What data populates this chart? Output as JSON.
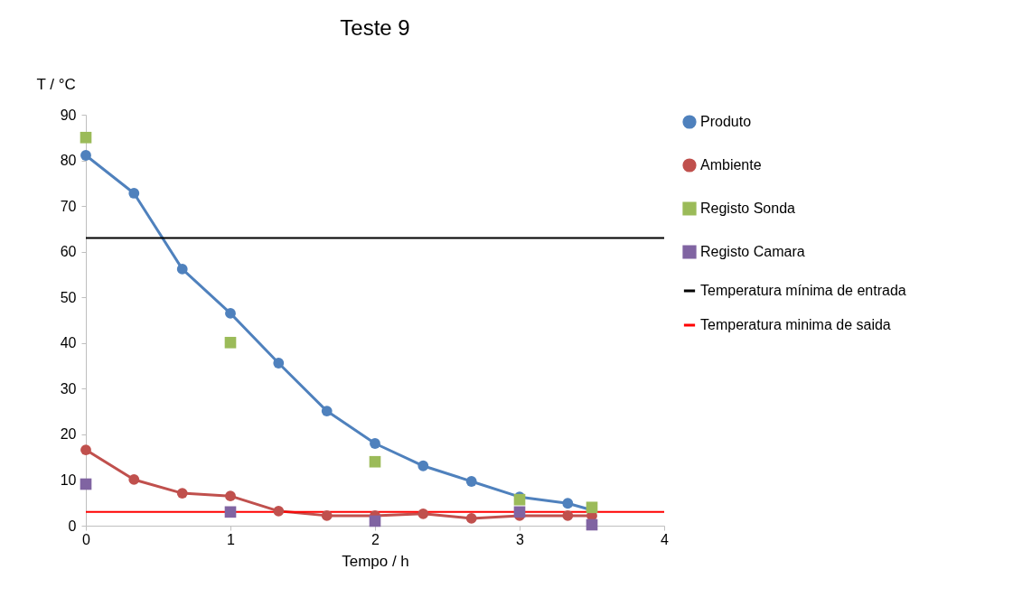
{
  "chart_data": {
    "type": "line",
    "title": "Teste 9",
    "xlabel": "Tempo / h",
    "ylabel": "T / °C",
    "xlim": [
      0,
      4
    ],
    "xticks": [
      0,
      1,
      2,
      3,
      4
    ],
    "ylim": [
      0,
      90
    ],
    "yticks": [
      0,
      10,
      20,
      30,
      40,
      50,
      60,
      70,
      80,
      90
    ],
    "grid": false,
    "legend": "right",
    "marker": "circle",
    "series": [
      {
        "name": "Produto",
        "color": "#4f81bd",
        "x": [
          0,
          0.333,
          0.667,
          1,
          1.333,
          1.667,
          2,
          2.333,
          2.667,
          3,
          3.333,
          3.5
        ],
        "values": [
          81.1,
          72.8,
          56.2,
          46.5,
          35.6,
          25.1,
          18.0,
          13.1,
          9.7,
          6.3,
          4.9,
          3.4
        ]
      },
      {
        "name": "Ambiente",
        "color": "#c0504d",
        "x": [
          0,
          0.333,
          0.667,
          1,
          1.333,
          1.667,
          2,
          2.333,
          2.667,
          3,
          3.333,
          3.5
        ],
        "values": [
          16.6,
          10.1,
          7.1,
          6.5,
          3.2,
          2.2,
          2.2,
          2.6,
          1.6,
          2.2,
          2.2,
          2.2
        ]
      },
      {
        "name": "Registo Sonda",
        "color": "#9bbb59",
        "type": "scatter",
        "marker": "square",
        "x": [
          0,
          1,
          2,
          3,
          3.5
        ],
        "values": [
          85.0,
          40.1,
          14.0,
          5.7,
          4.0
        ]
      },
      {
        "name": "Registo Camara",
        "color": "#8064a2",
        "type": "scatter",
        "marker": "square",
        "x": [
          0,
          1,
          2,
          3,
          3.5
        ],
        "values": [
          9.1,
          3.0,
          1.0,
          3.0,
          0.2
        ]
      }
    ],
    "ref_lines": [
      {
        "axis": "y",
        "value": 63,
        "label": "Temperatura mínima de entrada",
        "color": "#000000"
      },
      {
        "axis": "y",
        "value": 3,
        "label": "Temperatura minima de saida",
        "color": "#ff0000"
      }
    ]
  }
}
